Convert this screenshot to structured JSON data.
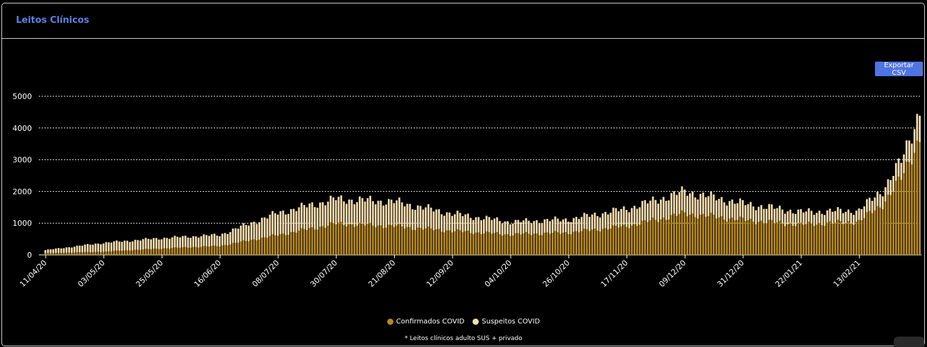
{
  "panel": {
    "title": "Leitos Clínicos"
  },
  "toolbar": {
    "export_label": "Exportar CSV"
  },
  "footnote": "* Leitos clínicos adulto SUS + privado",
  "colors": {
    "confirmed": "#b88a1c",
    "suspected": "#f6ddb0",
    "grid": "#ffffff",
    "title": "#5b83e6",
    "button": "#4f74e3"
  },
  "chart_data": {
    "type": "bar",
    "stacked": true,
    "x_start": "11/04/20",
    "x_end": "08/03/21",
    "x_tick_labels": [
      "11/04/20",
      "03/05/20",
      "25/05/20",
      "16/06/20",
      "08/07/20",
      "30/07/20",
      "21/08/20",
      "12/09/20",
      "04/10/20",
      "26/10/20",
      "17/11/20",
      "09/12/20",
      "31/12/20",
      "22/01/21",
      "13/02/21"
    ],
    "y_ticks": [
      0,
      1000,
      2000,
      3000,
      4000,
      5000
    ],
    "ylim": [
      0,
      5000
    ],
    "grid": true,
    "legend": "bottom-center",
    "series": [
      {
        "name": "Confirmados COVID",
        "key_points": [
          [
            "11/04/20",
            50
          ],
          [
            "03/05/20",
            100
          ],
          [
            "25/05/20",
            200
          ],
          [
            "16/06/20",
            280
          ],
          [
            "08/07/20",
            620
          ],
          [
            "30/07/20",
            980
          ],
          [
            "21/08/20",
            900
          ],
          [
            "12/09/20",
            750
          ],
          [
            "04/10/20",
            640
          ],
          [
            "26/10/20",
            700
          ],
          [
            "17/11/20",
            900
          ],
          [
            "09/12/20",
            1300
          ],
          [
            "31/12/20",
            1100
          ],
          [
            "22/01/21",
            950
          ],
          [
            "13/02/21",
            1050
          ],
          [
            "22/02/21",
            1600
          ],
          [
            "01/03/21",
            2400
          ],
          [
            "08/03/21",
            3700
          ]
        ]
      },
      {
        "name": "Suspeitos COVID",
        "key_points": [
          [
            "11/04/20",
            100
          ],
          [
            "03/05/20",
            280
          ],
          [
            "25/05/20",
            330
          ],
          [
            "16/06/20",
            350
          ],
          [
            "08/07/20",
            700
          ],
          [
            "30/07/20",
            780
          ],
          [
            "21/08/20",
            780
          ],
          [
            "12/09/20",
            550
          ],
          [
            "04/10/20",
            400
          ],
          [
            "26/10/20",
            420
          ],
          [
            "17/11/20",
            550
          ],
          [
            "09/12/20",
            700
          ],
          [
            "31/12/20",
            520
          ],
          [
            "22/01/21",
            400
          ],
          [
            "13/02/21",
            350
          ],
          [
            "22/02/21",
            450
          ],
          [
            "01/03/21",
            550
          ],
          [
            "08/03/21",
            870
          ]
        ]
      }
    ]
  },
  "legend_items": [
    {
      "label": "Confirmados COVID"
    },
    {
      "label": "Suspeitos COVID"
    }
  ]
}
